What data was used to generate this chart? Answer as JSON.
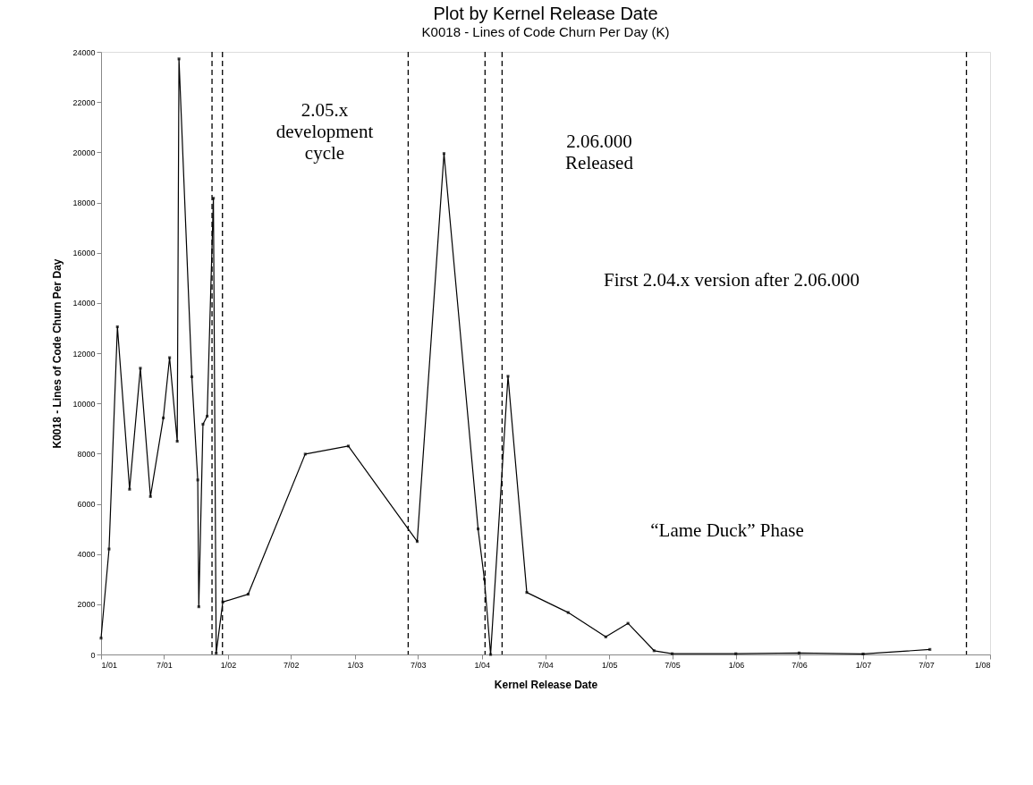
{
  "chart_data": {
    "type": "line",
    "title": "Plot by Kernel Release Date",
    "subtitle": "K0018 - Lines of Code Churn Per Day (K)",
    "xlabel": "Kernel Release Date",
    "ylabel": "K0018 - Lines of Code Churn Per Day",
    "x": [
      "2001-01-01",
      "2001-01-24",
      "2001-02-17",
      "2001-03-24",
      "2001-04-24",
      "2001-05-23",
      "2001-06-29",
      "2001-07-17",
      "2001-08-08",
      "2001-08-13",
      "2001-09-19",
      "2001-10-06",
      "2001-10-09",
      "2001-10-21",
      "2001-11-02",
      "2001-11-20",
      "2001-11-28",
      "2001-12-17",
      "2002-02-28",
      "2002-08-11",
      "2002-12-13",
      "2003-06-29",
      "2003-09-14",
      "2003-12-21",
      "2004-01-08",
      "2004-01-26",
      "2004-03-16",
      "2004-05-09",
      "2004-09-05",
      "2004-12-22",
      "2005-02-24",
      "2005-05-10",
      "2005-07-01",
      "2005-12-31",
      "2006-07-01",
      "2007-01-01",
      "2007-07-12"
    ],
    "series": [
      {
        "color": "#000000",
        "values": [
          650,
          4200,
          13050,
          6580,
          11400,
          6290,
          9420,
          11820,
          8490,
          23720,
          11060,
          6950,
          1900,
          9170,
          9490,
          18170,
          50,
          2090,
          2400,
          7980,
          8300,
          4500,
          19950,
          5000,
          3000,
          0,
          11080,
          2470,
          1670,
          700,
          1240,
          150,
          30,
          30,
          60,
          20,
          200
        ]
      }
    ],
    "xlim": [
      "2001-01-01",
      "2008-01-01"
    ],
    "xticks": [
      {
        "value": "2001-01-01",
        "label": "1/01"
      },
      {
        "value": "2001-07-01",
        "label": "7/01"
      },
      {
        "value": "2002-01-01",
        "label": "1/02"
      },
      {
        "value": "2002-07-01",
        "label": "7/02"
      },
      {
        "value": "2003-01-01",
        "label": "1/03"
      },
      {
        "value": "2003-07-01",
        "label": "7/03"
      },
      {
        "value": "2004-01-01",
        "label": "1/04"
      },
      {
        "value": "2004-07-01",
        "label": "7/04"
      },
      {
        "value": "2005-01-01",
        "label": "1/05"
      },
      {
        "value": "2005-07-01",
        "label": "7/05"
      },
      {
        "value": "2006-01-01",
        "label": "1/06"
      },
      {
        "value": "2006-07-01",
        "label": "7/06"
      },
      {
        "value": "2007-01-01",
        "label": "1/07"
      },
      {
        "value": "2007-07-01",
        "label": "7/07"
      },
      {
        "value": "2008-01-01",
        "label": "1/08"
      }
    ],
    "ylim": [
      0,
      24000
    ],
    "yticks": [
      0,
      2000,
      4000,
      6000,
      8000,
      10000,
      12000,
      14000,
      16000,
      18000,
      20000,
      22000,
      24000
    ],
    "grid": false,
    "marker": "square",
    "line_style": "solid",
    "ref_lines": [
      {
        "axis": "x",
        "value": "2001-11-16",
        "line_style": "dashed",
        "color": "#000000"
      },
      {
        "axis": "x",
        "value": "2001-12-16",
        "line_style": "dashed",
        "color": "#000000"
      },
      {
        "axis": "x",
        "value": "2003-06-03",
        "line_style": "dashed",
        "color": "#000000"
      },
      {
        "axis": "x",
        "value": "2004-01-10",
        "line_style": "dashed",
        "color": "#000000"
      },
      {
        "axis": "x",
        "value": "2004-02-28",
        "line_style": "dashed",
        "color": "#000000"
      },
      {
        "axis": "x",
        "value": "2007-10-25",
        "line_style": "dashed",
        "color": "#000000"
      }
    ],
    "annotations": [
      "2.05.x\ndevelopment\ncycle",
      "2.06.000\nReleased",
      "First 2.04.x version after 2.06.000",
      "“Lame Duck” Phase"
    ]
  }
}
